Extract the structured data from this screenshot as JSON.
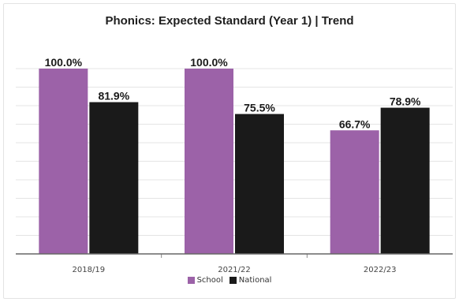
{
  "chart_data": {
    "type": "bar",
    "title": "Phonics: Expected Standard (Year 1) | Trend",
    "categories": [
      "2018/19",
      "2021/22",
      "2022/23"
    ],
    "series": [
      {
        "name": "School",
        "values": [
          100.0,
          100.0,
          66.7
        ],
        "labels": [
          "100.0%",
          "100.0%",
          "66.7%"
        ],
        "color": "#9c62a8"
      },
      {
        "name": "National",
        "values": [
          81.9,
          75.5,
          78.9
        ],
        "labels": [
          "81.9%",
          "75.5%",
          "78.9%"
        ],
        "color": "#1a1a1a"
      }
    ],
    "ylim": [
      0,
      100
    ],
    "grid": true,
    "legend_position": "bottom"
  }
}
